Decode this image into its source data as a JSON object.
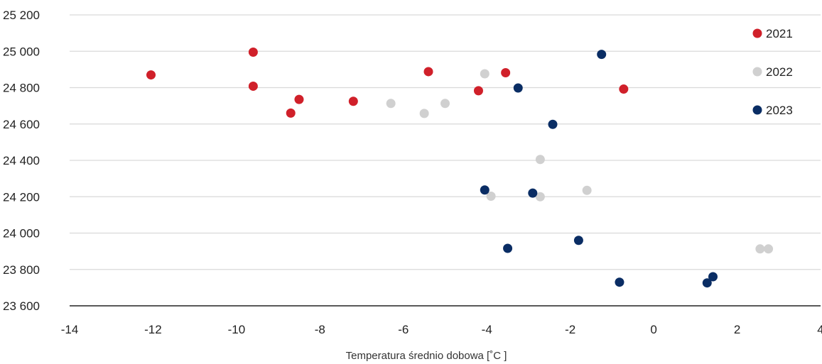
{
  "chart_data": {
    "type": "scatter",
    "xlabel": "Temperatura średnio dobowa [˚C ]",
    "ylabel": "",
    "xlim": [
      -14,
      4
    ],
    "ylim": [
      23600,
      25200
    ],
    "x_ticks": [
      -14,
      -12,
      -10,
      -8,
      -6,
      -4,
      -2,
      0,
      2,
      4
    ],
    "x_tick_labels": [
      "-14",
      "-12",
      "-10",
      "-8",
      "-6",
      "-4",
      "-2",
      "0",
      "2",
      "4"
    ],
    "y_ticks": [
      23600,
      23800,
      24000,
      24200,
      24400,
      24600,
      24800,
      25000,
      25200
    ],
    "y_tick_labels": [
      "23 600",
      "23 800",
      "24 000",
      "24 200",
      "24 400",
      "24 600",
      "24 800",
      "25 000",
      "25 200"
    ],
    "grid": true,
    "legend_position": "right",
    "series": [
      {
        "name": "2021",
        "color": "#d0202a",
        "points": [
          [
            -12.05,
            24870
          ],
          [
            -9.6,
            24995
          ],
          [
            -9.6,
            24808
          ],
          [
            -8.5,
            24735
          ],
          [
            -8.7,
            24660
          ],
          [
            -7.2,
            24725
          ],
          [
            -5.4,
            24888
          ],
          [
            -3.55,
            24882
          ],
          [
            -4.2,
            24783
          ],
          [
            -0.72,
            24792
          ]
        ]
      },
      {
        "name": "2022",
        "color": "#d0d0d0",
        "points": [
          [
            -6.3,
            24713
          ],
          [
            -5.5,
            24658
          ],
          [
            -5.0,
            24713
          ],
          [
            -4.05,
            24876
          ],
          [
            -2.72,
            24405
          ],
          [
            -3.9,
            24203
          ],
          [
            -2.72,
            24200
          ],
          [
            -1.6,
            24235
          ],
          [
            2.55,
            23913
          ],
          [
            2.75,
            23913
          ]
        ]
      },
      {
        "name": "2023",
        "color": "#0a2d64",
        "points": [
          [
            -1.25,
            24983
          ],
          [
            -3.25,
            24798
          ],
          [
            -2.42,
            24598
          ],
          [
            -4.05,
            24237
          ],
          [
            -2.9,
            24220
          ],
          [
            -3.5,
            23916
          ],
          [
            -1.8,
            23960
          ],
          [
            -0.82,
            23730
          ],
          [
            1.28,
            23726
          ],
          [
            1.42,
            23760
          ]
        ]
      }
    ]
  }
}
